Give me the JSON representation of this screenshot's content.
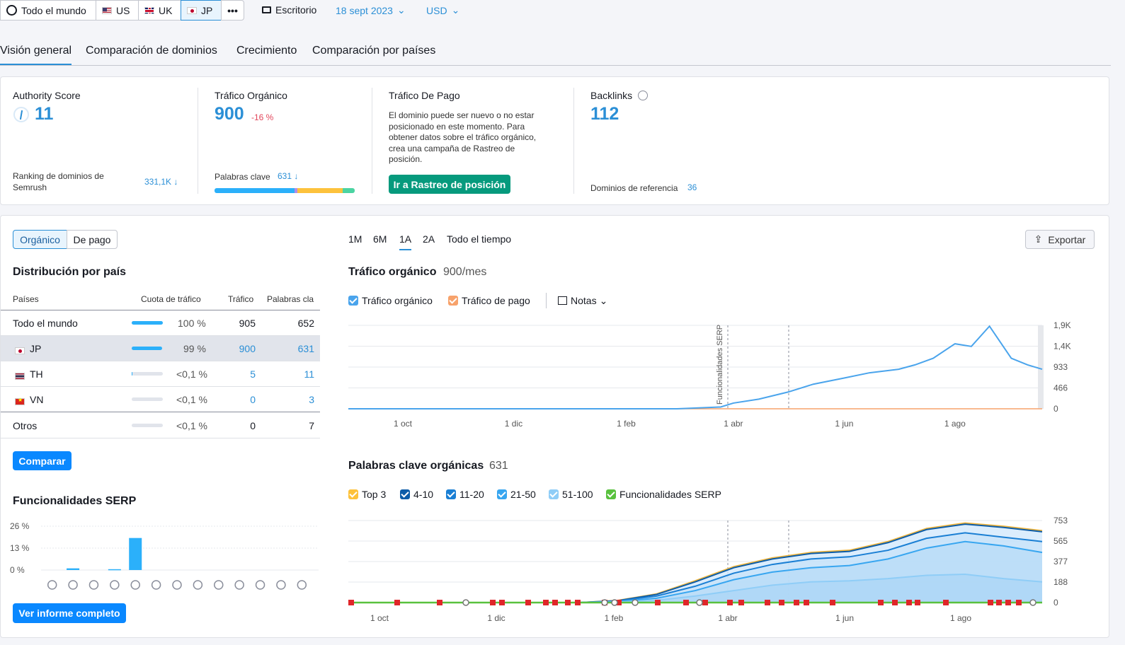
{
  "topbar": {
    "world_label": "Todo el mundo",
    "countries": [
      "US",
      "UK",
      "JP"
    ],
    "more": "•••",
    "device": "Escritorio",
    "date": "18 sept 2023",
    "currency": "USD"
  },
  "tabs": [
    "Visión general",
    "Comparación de dominios",
    "Crecimiento",
    "Comparación por países"
  ],
  "summary": {
    "authority": {
      "label": "Authority Score",
      "value": "11",
      "rank_label": "Ranking de dominios de Semrush",
      "rank_value": "331,1K ↓"
    },
    "organic": {
      "label": "Tráfico Orgánico",
      "value": "900",
      "change": "-16 %",
      "kw_label": "Palabras clave",
      "kw_value": "631 ↓"
    },
    "paid": {
      "label": "Tráfico De Pago",
      "note": "El dominio puede ser nuevo o no estar posicionado en este momento. Para obtener datos sobre el tráfico orgánico, crea una campaña de Rastreo de posición.",
      "button": "Ir a Rastreo de posición"
    },
    "backlinks": {
      "label": "Backlinks",
      "value": "112",
      "ref_label": "Dominios de referencia",
      "ref_value": "36"
    }
  },
  "left": {
    "toggle": [
      "Orgánico",
      "De pago"
    ],
    "dist_title": "Distribución por país",
    "headers": [
      "Países",
      "Cuota de tráfico",
      "Tráfico",
      "Palabras cla"
    ],
    "rows": [
      {
        "name": "Todo el mundo",
        "share": "100 %",
        "share_frac": 1.0,
        "traffic": "905",
        "keywords": "652"
      },
      {
        "name": "JP",
        "share": "99 %",
        "share_frac": 0.99,
        "traffic": "900",
        "keywords": "631"
      },
      {
        "name": "TH",
        "share": "<0,1 %",
        "share_frac": 0.001,
        "traffic": "5",
        "keywords": "11"
      },
      {
        "name": "VN",
        "share": "<0,1 %",
        "share_frac": 0.0,
        "traffic": "0",
        "keywords": "3"
      },
      {
        "name": "Otros",
        "share": "<0,1 %",
        "share_frac": 0.0,
        "traffic": "0",
        "keywords": "7"
      }
    ],
    "compare_button": "Comparar",
    "serp_title": "Funcionalidades SERP",
    "serp_ticks": [
      "26 %",
      "13 %",
      "0 %"
    ],
    "full_report_button": "Ver informe completo"
  },
  "right": {
    "periods": [
      "1M",
      "6M",
      "1A",
      "2A",
      "Todo el tiempo"
    ],
    "export": "Exportar",
    "traffic_title": "Tráfico orgánico",
    "traffic_sub": "900/mes",
    "traffic_legend": [
      "Tráfico orgánico",
      "Tráfico de pago"
    ],
    "notes": "Notas",
    "serp_annotation": "Funcionalidades SERP",
    "kw_title": "Palabras clave orgánicas",
    "kw_sub": "631",
    "kw_legend": [
      "Top 3",
      "4-10",
      "11-20",
      "21-50",
      "51-100",
      "Funcionalidades SERP"
    ]
  },
  "colors": {
    "accent": "#2b8fd6",
    "organic": "#4aa4ec",
    "paid": "#f7a26b",
    "green_button": "#069a7d",
    "blue_button": "#0a88ff",
    "serp_green": "#59c13e",
    "flag_red": "#e0262a"
  },
  "chart_data": [
    {
      "type": "bar",
      "title": "Funcionalidades SERP",
      "categories": [
        "1",
        "2",
        "3",
        "4",
        "5",
        "6",
        "7",
        "8",
        "9",
        "10",
        "11",
        "12",
        "13"
      ],
      "values": [
        0,
        1,
        0,
        0.5,
        19,
        0,
        0,
        0,
        0,
        0,
        0,
        0,
        0
      ],
      "ylim": [
        0,
        26
      ],
      "yticks": [
        "26 %",
        "13 %",
        "0 %"
      ]
    },
    {
      "type": "line",
      "title": "Tráfico orgánico",
      "x_ticks": [
        "1 oct",
        "1 dic",
        "1 feb",
        "1 abr",
        "1 jun",
        "1 ago"
      ],
      "y_ticks": [
        "1,9K",
        "1,4K",
        "933",
        "466",
        "0"
      ],
      "ylim": [
        0,
        1900
      ],
      "series": [
        {
          "name": "Tráfico orgánico",
          "x": [
            "2022-09",
            "2022-10",
            "2022-11",
            "2022-12",
            "2023-01",
            "2023-02",
            "2023-03",
            "2023-03-25",
            "2023-04-01",
            "2023-04-15",
            "2023-05-01",
            "2023-05-15",
            "2023-06-01",
            "2023-06-15",
            "2023-07-01",
            "2023-07-10",
            "2023-07-20",
            "2023-08-01",
            "2023-08-10",
            "2023-08-20",
            "2023-09-01",
            "2023-09-10",
            "2023-09-18"
          ],
          "values": [
            0,
            0,
            0,
            0,
            0,
            0,
            0,
            40,
            130,
            220,
            380,
            560,
            700,
            820,
            900,
            1000,
            1150,
            1480,
            1420,
            1880,
            1150,
            1000,
            900
          ]
        },
        {
          "name": "Tráfico de pago",
          "x": [
            "2022-09",
            "2023-09-18"
          ],
          "values": [
            0,
            0
          ]
        }
      ]
    },
    {
      "type": "area",
      "title": "Palabras clave orgánicas",
      "x_ticks": [
        "1 oct",
        "1 dic",
        "1 feb",
        "1 abr",
        "1 jun",
        "1 ago"
      ],
      "y_ticks": [
        "753",
        "565",
        "377",
        "188",
        "0"
      ],
      "ylim": [
        0,
        753
      ],
      "series": [
        {
          "name": "Top 3",
          "values": [
            0,
            0,
            0,
            0,
            0,
            0,
            0,
            20,
            80,
            200,
            330,
            410,
            460,
            480,
            560,
            680,
            730,
            700,
            660
          ]
        },
        {
          "name": "4-10",
          "values": [
            0,
            0,
            0,
            0,
            0,
            0,
            0,
            18,
            75,
            190,
            320,
            400,
            450,
            470,
            550,
            670,
            720,
            690,
            650
          ]
        },
        {
          "name": "11-20",
          "values": [
            0,
            0,
            0,
            0,
            0,
            0,
            0,
            15,
            60,
            150,
            270,
            350,
            400,
            420,
            480,
            590,
            640,
            600,
            560
          ]
        },
        {
          "name": "21-50",
          "values": [
            0,
            0,
            0,
            0,
            0,
            0,
            0,
            10,
            40,
            110,
            210,
            280,
            320,
            340,
            400,
            500,
            560,
            520,
            460
          ]
        },
        {
          "name": "51-100",
          "values": [
            0,
            0,
            0,
            0,
            0,
            0,
            0,
            5,
            20,
            60,
            110,
            160,
            190,
            200,
            220,
            250,
            260,
            220,
            190
          ]
        }
      ]
    }
  ]
}
